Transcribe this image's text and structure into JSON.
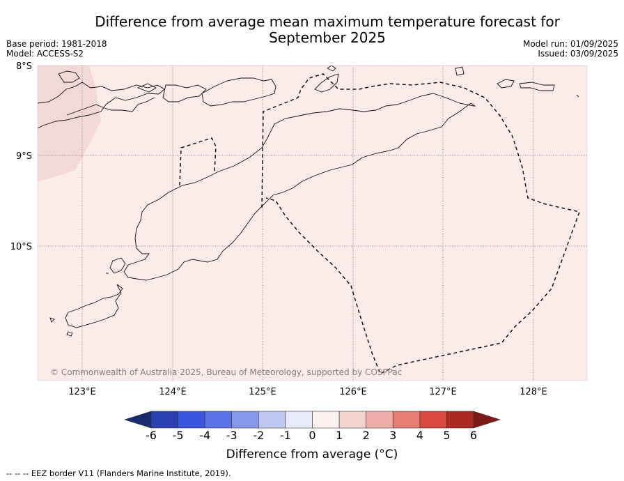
{
  "title": "Difference from average mean maximum temperature forecast for September 2025",
  "base_period": "Base period: 1981-2018",
  "model": "Model: ACCESS-S2",
  "model_run": "Model run: 01/09/2025",
  "issued": "Issued: 03/09/2025",
  "copyright": "© Commonwealth of Australia 2025, Bureau of Meteorology, supported by COSPPac",
  "footer_note": "--  --  -- EEZ border V11 (Flanders Marine Institute, 2019).",
  "map": {
    "lon_labels": [
      "123°E",
      "124°E",
      "125°E",
      "126°E",
      "127°E",
      "128°E"
    ],
    "lat_labels": [
      "8°S",
      "9°S",
      "10°S"
    ],
    "colors": {
      "background_anomaly": "#fbebe9",
      "warmer_patch": "#f2d6d3",
      "grid": "#7a6a6a"
    }
  },
  "colorbar": {
    "label": "Difference from average (°C)",
    "ticks": [
      "-6",
      "-5",
      "-4",
      "-3",
      "-2",
      "-1",
      "0",
      "1",
      "2",
      "3",
      "4",
      "5",
      "6"
    ],
    "colors": [
      "#1b2a6e",
      "#2a40b0",
      "#3a55e0",
      "#5a73e6",
      "#8598ea",
      "#bfc8f2",
      "#e8ebfa",
      "#fdf1f0",
      "#f4d4d0",
      "#eeaca6",
      "#e77e74",
      "#d9493e",
      "#aa2a22",
      "#7a1a17"
    ]
  }
}
